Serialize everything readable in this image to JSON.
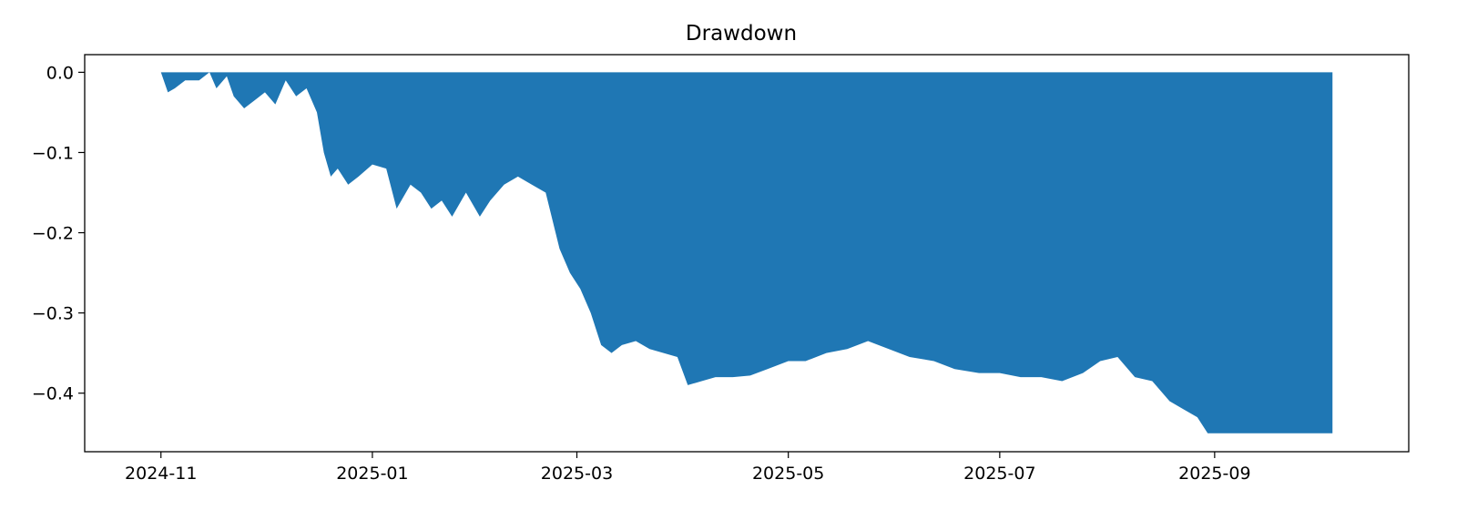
{
  "chart_data": {
    "type": "area",
    "title": "Drawdown",
    "xlabel": "",
    "ylabel": "",
    "color": "#1f77b4",
    "grid": false,
    "x_ticks": [
      "2024-11-01",
      "2025-01-01",
      "2025-03-01",
      "2025-05-01",
      "2025-07-01",
      "2025-09-01"
    ],
    "x_tick_labels": [
      "2024-11",
      "2025-01",
      "2025-03",
      "2025-05",
      "2025-07",
      "2025-09"
    ],
    "y_ticks": [
      0.0,
      -0.1,
      -0.2,
      -0.3,
      -0.4
    ],
    "y_tick_labels": [
      "0.0",
      "−0.1",
      "−0.2",
      "−0.3",
      "−0.4"
    ],
    "xlim": [
      "2024-10-10",
      "2025-10-27"
    ],
    "ylim": [
      -0.473,
      0.022
    ],
    "series": [
      {
        "x": [
          "2024-11-01",
          "2024-11-03",
          "2024-11-05",
          "2024-11-08",
          "2024-11-12",
          "2024-11-15",
          "2024-11-17",
          "2024-11-20",
          "2024-11-22",
          "2024-11-25",
          "2024-11-28",
          "2024-12-01",
          "2024-12-04",
          "2024-12-07",
          "2024-12-10",
          "2024-12-13",
          "2024-12-16",
          "2024-12-18",
          "2024-12-20",
          "2024-12-22",
          "2024-12-25",
          "2024-12-28",
          "2025-01-01",
          "2025-01-05",
          "2025-01-08",
          "2025-01-12",
          "2025-01-15",
          "2025-01-18",
          "2025-01-21",
          "2025-01-24",
          "2025-01-28",
          "2025-02-01",
          "2025-02-04",
          "2025-02-08",
          "2025-02-12",
          "2025-02-16",
          "2025-02-20",
          "2025-02-24",
          "2025-02-27",
          "2025-03-02",
          "2025-03-05",
          "2025-03-08",
          "2025-03-11",
          "2025-03-14",
          "2025-03-18",
          "2025-03-22",
          "2025-03-26",
          "2025-03-30",
          "2025-04-02",
          "2025-04-06",
          "2025-04-10",
          "2025-04-15",
          "2025-04-20",
          "2025-04-25",
          "2025-05-01",
          "2025-05-06",
          "2025-05-12",
          "2025-05-18",
          "2025-05-24",
          "2025-05-30",
          "2025-06-05",
          "2025-06-12",
          "2025-06-18",
          "2025-06-25",
          "2025-07-01",
          "2025-07-07",
          "2025-07-13",
          "2025-07-19",
          "2025-07-25",
          "2025-07-30",
          "2025-08-04",
          "2025-08-09",
          "2025-08-14",
          "2025-08-19",
          "2025-08-23",
          "2025-08-27",
          "2025-08-30",
          "2025-09-10",
          "2025-09-25",
          "2025-10-05"
        ],
        "values": [
          0.0,
          -0.025,
          -0.02,
          -0.01,
          -0.01,
          0.0,
          -0.02,
          -0.005,
          -0.03,
          -0.045,
          -0.035,
          -0.025,
          -0.04,
          -0.01,
          -0.03,
          -0.02,
          -0.05,
          -0.1,
          -0.13,
          -0.12,
          -0.14,
          -0.13,
          -0.115,
          -0.12,
          -0.17,
          -0.14,
          -0.15,
          -0.17,
          -0.16,
          -0.18,
          -0.15,
          -0.18,
          -0.16,
          -0.14,
          -0.13,
          -0.14,
          -0.15,
          -0.22,
          -0.25,
          -0.27,
          -0.3,
          -0.34,
          -0.35,
          -0.34,
          -0.335,
          -0.345,
          -0.35,
          -0.355,
          -0.39,
          -0.385,
          -0.38,
          -0.38,
          -0.378,
          -0.37,
          -0.36,
          -0.36,
          -0.35,
          -0.345,
          -0.335,
          -0.345,
          -0.355,
          -0.36,
          -0.37,
          -0.375,
          -0.375,
          -0.38,
          -0.38,
          -0.385,
          -0.375,
          -0.36,
          -0.355,
          -0.38,
          -0.385,
          -0.41,
          -0.42,
          -0.43,
          -0.45,
          -0.45,
          -0.45,
          -0.45
        ]
      }
    ]
  }
}
